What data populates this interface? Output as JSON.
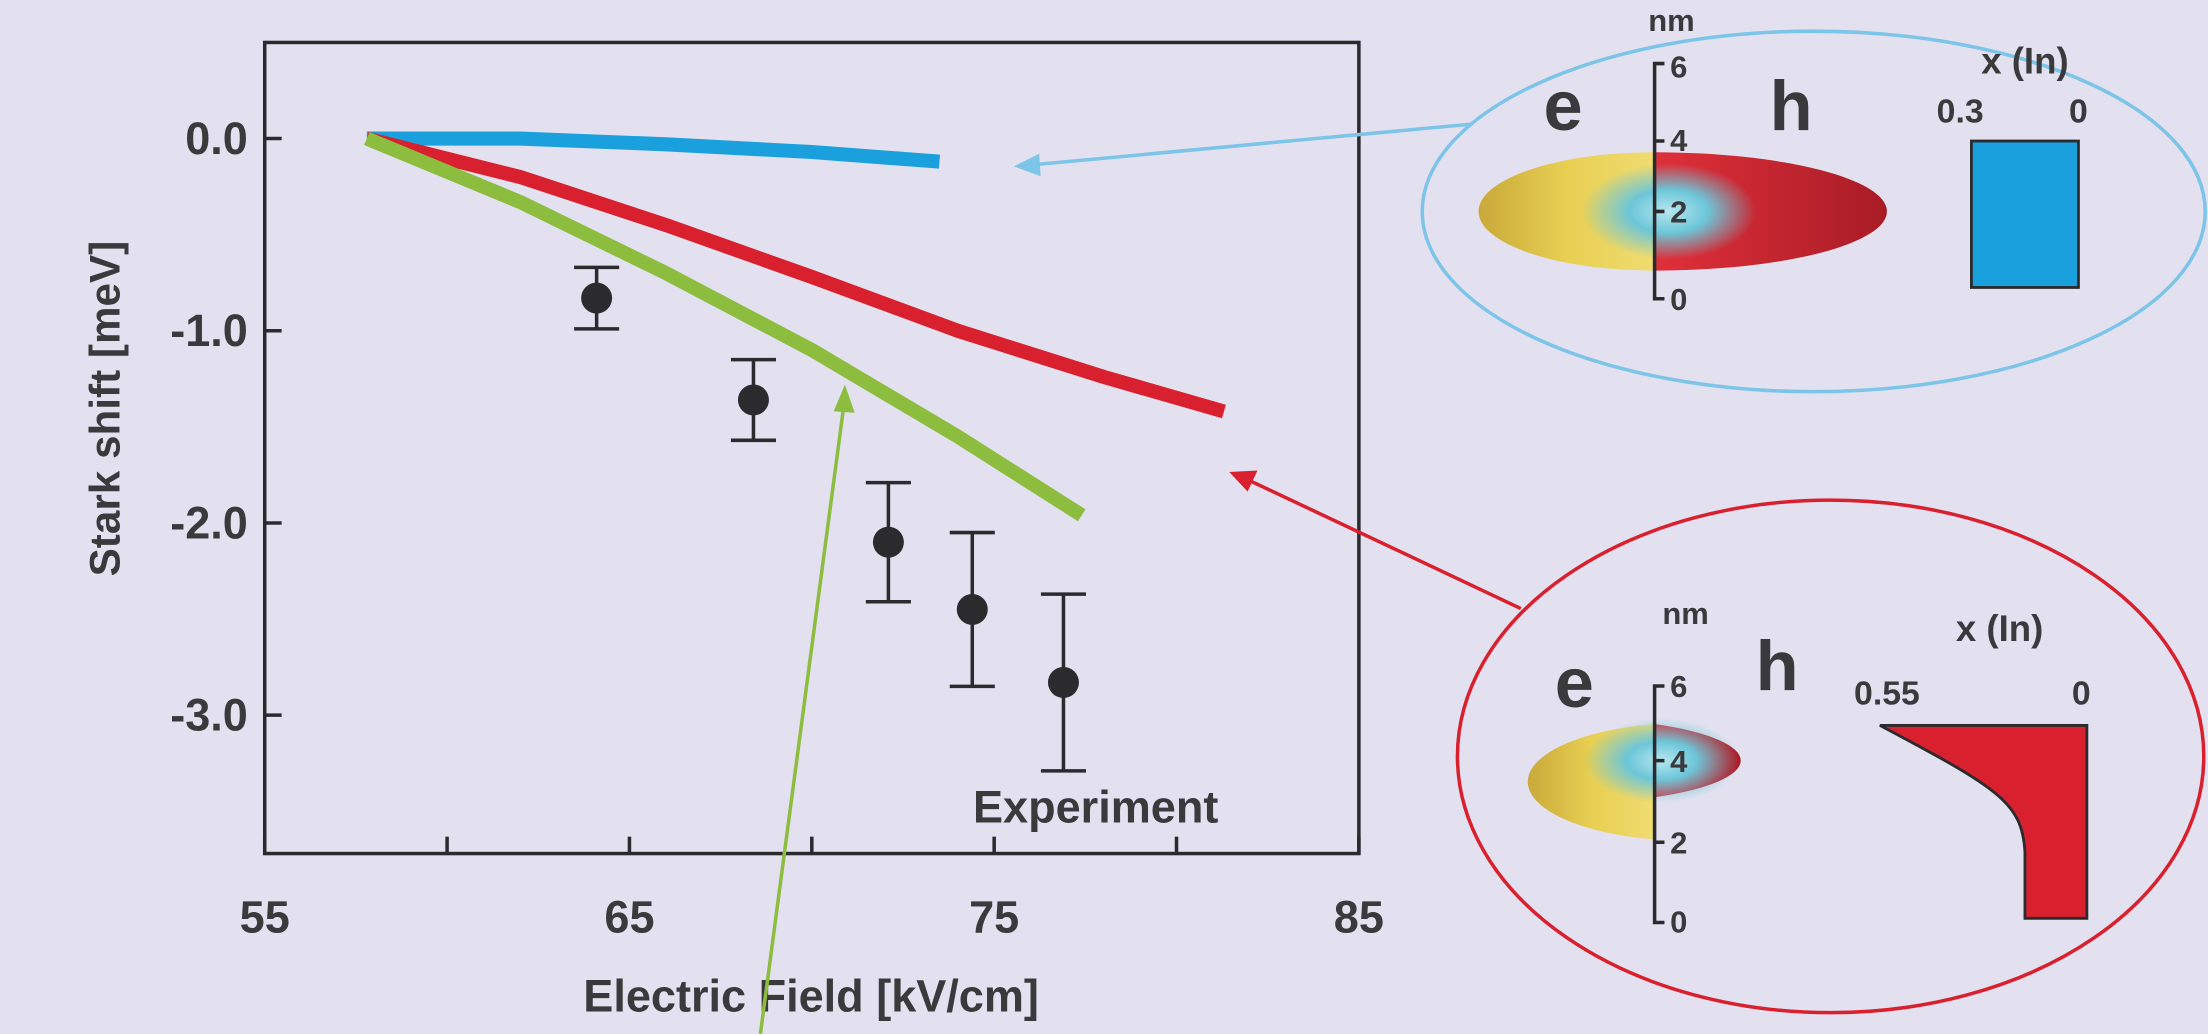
{
  "chart_data": {
    "type": "line",
    "xlabel": "Electric Field [kV/cm]",
    "ylabel": "Stark shift [meV]",
    "xlim": [
      55,
      85
    ],
    "ylim": [
      -3.72,
      0.5
    ],
    "xticks": [
      55,
      65,
      75,
      85
    ],
    "xminorticks": [
      60,
      70,
      80
    ],
    "yticks": [
      {
        "value": 0,
        "label": "0.0"
      },
      {
        "value": -1,
        "label": "-1.0"
      },
      {
        "value": -2,
        "label": "-2.0"
      },
      {
        "value": -3,
        "label": "-3.0"
      }
    ],
    "series": [
      {
        "color": "#1aa0dc",
        "x": [
          57.8,
          62,
          66,
          70,
          73.5
        ],
        "values": [
          0,
          0,
          -0.03,
          -0.07,
          -0.12
        ]
      },
      {
        "color": "#d9202e",
        "x": [
          57.8,
          62,
          66,
          70,
          74,
          78,
          81.3
        ],
        "values": [
          0,
          -0.2,
          -0.45,
          -0.72,
          -1.0,
          -1.24,
          -1.42
        ]
      },
      {
        "color": "#8cbd3f",
        "x": [
          57.8,
          62,
          66,
          70,
          74,
          77.4
        ],
        "values": [
          0,
          -0.33,
          -0.7,
          -1.1,
          -1.55,
          -1.96
        ]
      },
      {
        "name": "Experiment",
        "type": "scatter",
        "color": "#2b2b2e",
        "x": [
          64.1,
          68.4,
          72.1,
          74.4,
          76.9
        ],
        "values": [
          -0.83,
          -1.36,
          -2.1,
          -2.45,
          -2.83
        ],
        "errors": [
          0.16,
          0.21,
          0.31,
          0.4,
          0.46
        ]
      }
    ]
  },
  "insets": [
    {
      "unit": "nm",
      "scale": [
        "6",
        "4",
        "2",
        "0"
      ],
      "electron": "e",
      "hole": "h",
      "profile_label": "x (In)",
      "profile_ticks": [
        "0.3",
        "0"
      ]
    },
    {
      "unit": "nm",
      "scale": [
        "6",
        "4",
        "2",
        "0"
      ],
      "electron": "e",
      "hole": "h",
      "profile_label": "x (In)",
      "profile_ticks": [
        "0.55",
        "0"
      ]
    }
  ]
}
